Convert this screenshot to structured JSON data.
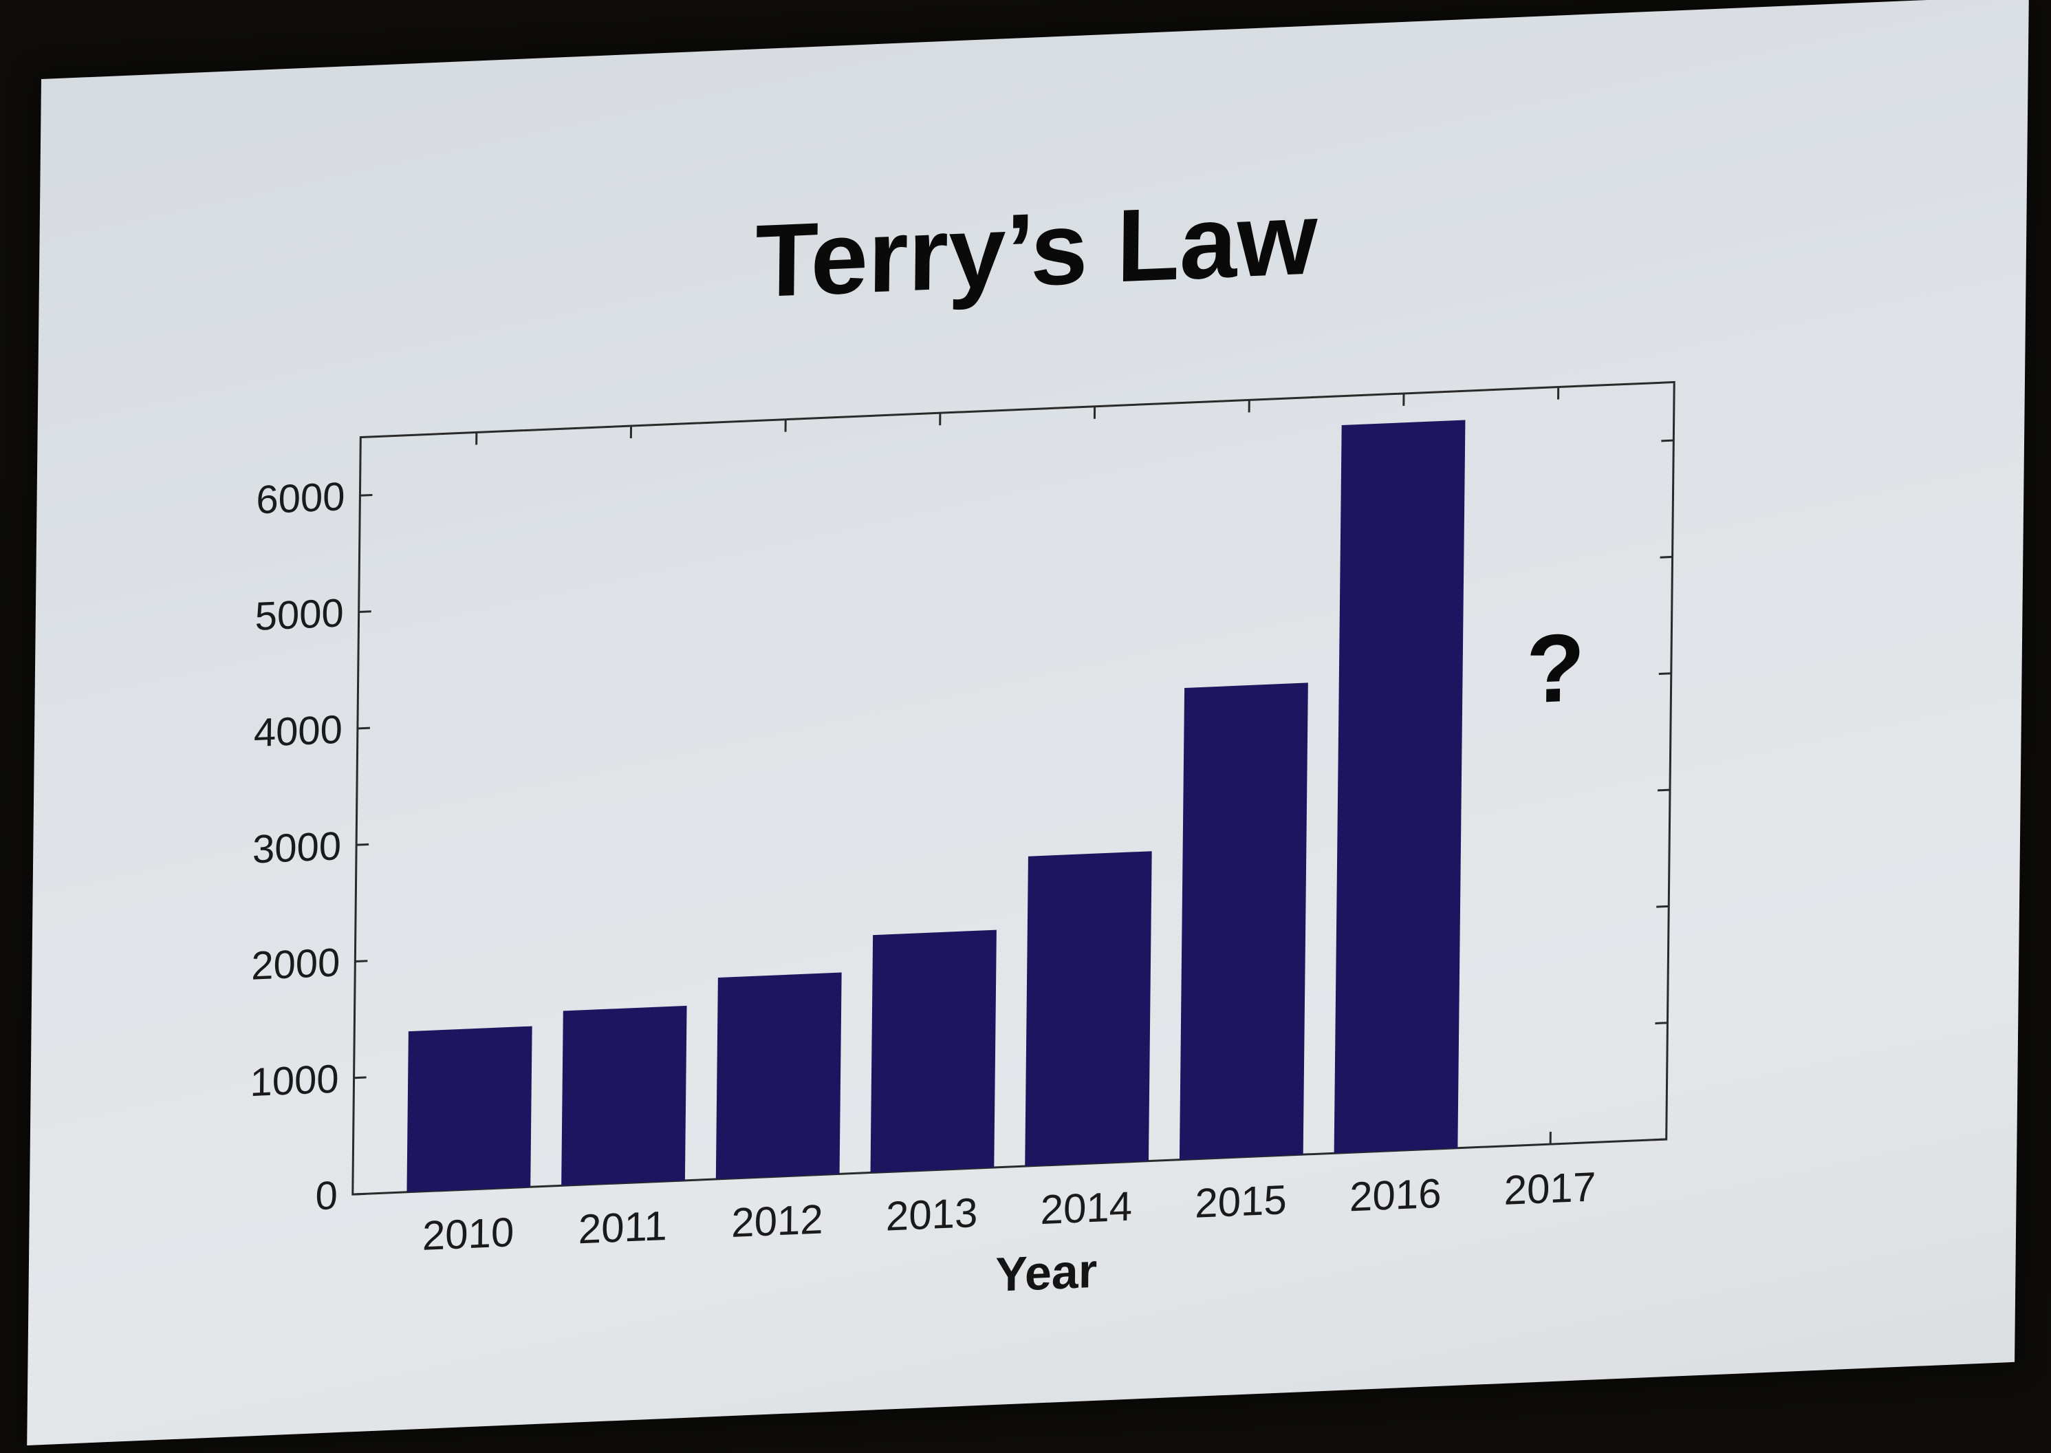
{
  "chart_data": {
    "type": "bar",
    "title": "Terry’s Law",
    "xlabel": "Year",
    "ylabel": "",
    "categories": [
      "2010",
      "2011",
      "2012",
      "2013",
      "2014",
      "2015",
      "2016",
      "2017"
    ],
    "values": [
      1380,
      1500,
      1730,
      2040,
      2660,
      4050,
      6250,
      null
    ],
    "ylim": [
      0,
      6500
    ],
    "yticks": [
      0,
      1000,
      2000,
      3000,
      4000,
      5000,
      6000
    ],
    "ytick_labels": [
      "0",
      "1000",
      "2000",
      "3000",
      "4000",
      "5000",
      "6000"
    ],
    "bar_color": "#1e1560",
    "grid": false,
    "annotations": [
      {
        "text": "?",
        "category": "2017",
        "value": 3800
      }
    ]
  }
}
